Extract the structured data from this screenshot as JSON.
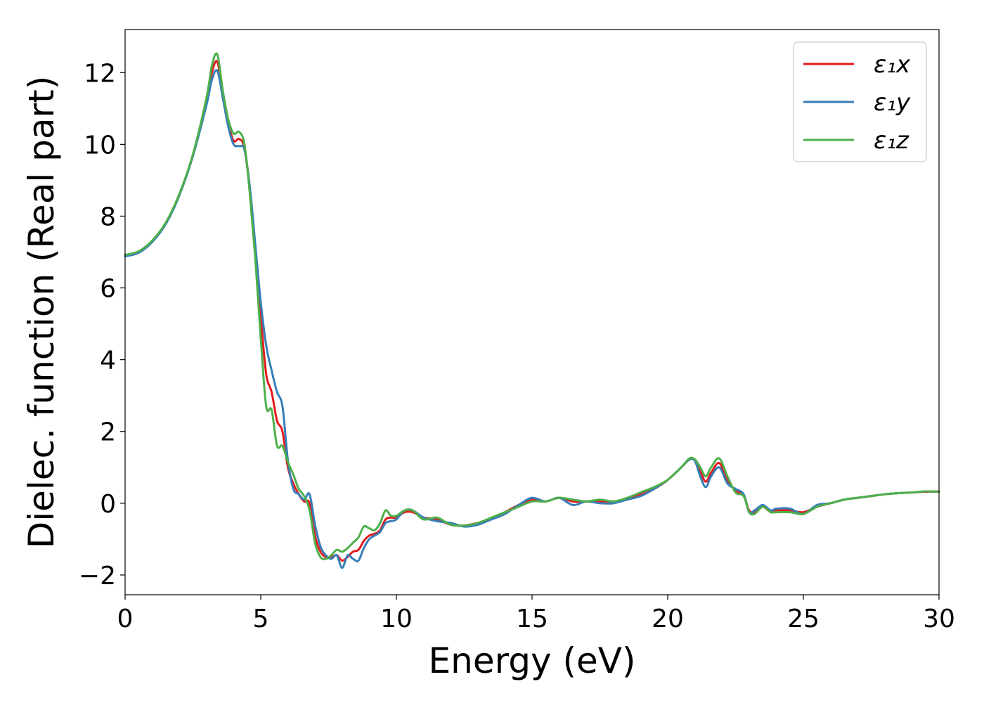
{
  "chart_data": {
    "type": "line",
    "title": "",
    "xlabel": "Energy (eV)",
    "ylabel": "Dielec. function (Real part)",
    "xlim": [
      0,
      30
    ],
    "ylim": [
      -2.55,
      13.2
    ],
    "xticks": [
      0,
      5,
      10,
      15,
      20,
      25,
      30
    ],
    "xtick_labels": [
      "0",
      "5",
      "10",
      "15",
      "20",
      "25",
      "30"
    ],
    "yticks": [
      -2,
      0,
      2,
      4,
      6,
      8,
      10,
      12
    ],
    "ytick_labels": [
      "−2",
      "0",
      "2",
      "4",
      "6",
      "8",
      "10",
      "12"
    ],
    "grid": false,
    "legend_position": "top-right",
    "series": [
      {
        "name": "ε₁x",
        "color": "#e41a1c",
        "x": [
          0,
          0.5,
          1,
          1.5,
          2,
          2.5,
          3,
          3.2,
          3.4,
          3.6,
          3.8,
          4.0,
          4.2,
          4.4,
          4.6,
          4.8,
          5.0,
          5.2,
          5.4,
          5.6,
          5.8,
          6.0,
          6.2,
          6.4,
          6.6,
          6.8,
          7.0,
          7.2,
          7.4,
          7.6,
          7.8,
          8.0,
          8.2,
          8.4,
          8.6,
          8.8,
          9.0,
          9.2,
          9.4,
          9.6,
          9.8,
          10.0,
          10.3,
          10.6,
          11.0,
          11.5,
          12.0,
          12.5,
          13.0,
          13.5,
          14.0,
          14.5,
          15.0,
          15.5,
          16.0,
          16.5,
          17.0,
          17.5,
          18.0,
          18.5,
          19.0,
          19.5,
          20.0,
          20.5,
          20.8,
          21.0,
          21.2,
          21.4,
          21.6,
          21.9,
          22.2,
          22.5,
          22.8,
          23.0,
          23.2,
          23.5,
          23.8,
          24.0,
          24.5,
          25.0,
          25.5,
          26.0,
          26.5,
          27.0,
          27.5,
          28.0,
          28.5,
          29.0,
          29.5,
          30.0
        ],
        "y": [
          6.9,
          7.0,
          7.3,
          7.8,
          8.6,
          9.7,
          11.2,
          12.0,
          12.3,
          11.4,
          10.6,
          10.1,
          10.15,
          9.9,
          8.7,
          7.0,
          5.2,
          3.6,
          3.1,
          2.3,
          2.0,
          1.0,
          0.55,
          0.25,
          0.05,
          0.0,
          -0.9,
          -1.35,
          -1.5,
          -1.5,
          -1.45,
          -1.6,
          -1.5,
          -1.35,
          -1.3,
          -1.05,
          -0.9,
          -0.85,
          -0.75,
          -0.45,
          -0.4,
          -0.4,
          -0.25,
          -0.25,
          -0.4,
          -0.45,
          -0.6,
          -0.62,
          -0.55,
          -0.45,
          -0.25,
          -0.05,
          0.1,
          0.05,
          0.15,
          0.05,
          0.05,
          0.05,
          0.05,
          0.1,
          0.25,
          0.4,
          0.65,
          1.0,
          1.22,
          1.2,
          0.9,
          0.6,
          0.85,
          1.12,
          0.65,
          0.35,
          0.2,
          -0.2,
          -0.25,
          -0.1,
          -0.25,
          -0.2,
          -0.2,
          -0.25,
          -0.1,
          0.0,
          0.1,
          0.15,
          0.2,
          0.25,
          0.28,
          0.3,
          0.32,
          0.33
        ]
      },
      {
        "name": "ε₁y",
        "color": "#377eb8",
        "x": [
          0,
          0.5,
          1,
          1.5,
          2,
          2.5,
          3,
          3.2,
          3.4,
          3.6,
          3.8,
          4.0,
          4.2,
          4.4,
          4.6,
          4.8,
          5.0,
          5.2,
          5.4,
          5.6,
          5.8,
          6.0,
          6.2,
          6.4,
          6.6,
          6.8,
          7.0,
          7.2,
          7.4,
          7.6,
          7.8,
          8.0,
          8.2,
          8.4,
          8.6,
          8.8,
          9.0,
          9.2,
          9.4,
          9.6,
          9.8,
          10.0,
          10.3,
          10.6,
          11.0,
          11.5,
          12.0,
          12.5,
          13.0,
          13.5,
          14.0,
          14.5,
          15.0,
          15.5,
          16.0,
          16.5,
          17.0,
          17.5,
          18.0,
          18.5,
          19.0,
          19.5,
          20.0,
          20.5,
          20.8,
          21.0,
          21.2,
          21.4,
          21.6,
          21.9,
          22.2,
          22.5,
          22.8,
          23.0,
          23.2,
          23.5,
          23.8,
          24.0,
          24.5,
          25.0,
          25.5,
          26.0,
          26.5,
          27.0,
          27.5,
          28.0,
          28.5,
          29.0,
          29.5,
          30.0
        ],
        "y": [
          6.88,
          6.98,
          7.28,
          7.78,
          8.58,
          9.68,
          11.1,
          11.8,
          12.05,
          11.3,
          10.5,
          10.0,
          9.95,
          9.85,
          8.8,
          7.2,
          5.6,
          4.4,
          3.7,
          3.1,
          2.7,
          1.2,
          0.4,
          0.25,
          0.1,
          0.25,
          -0.6,
          -1.2,
          -1.45,
          -1.55,
          -1.45,
          -1.8,
          -1.45,
          -1.55,
          -1.6,
          -1.25,
          -1.0,
          -0.9,
          -0.8,
          -0.55,
          -0.5,
          -0.45,
          -0.2,
          -0.2,
          -0.4,
          -0.5,
          -0.55,
          -0.65,
          -0.6,
          -0.45,
          -0.3,
          -0.05,
          0.15,
          0.05,
          0.15,
          -0.05,
          0.05,
          0.0,
          0.0,
          0.1,
          0.2,
          0.4,
          0.65,
          1.0,
          1.22,
          1.18,
          0.75,
          0.45,
          0.75,
          1.0,
          0.55,
          0.4,
          0.25,
          -0.25,
          -0.2,
          -0.05,
          -0.2,
          -0.15,
          -0.15,
          -0.3,
          -0.05,
          0.0,
          0.1,
          0.15,
          0.2,
          0.25,
          0.28,
          0.3,
          0.33,
          0.32
        ]
      },
      {
        "name": "ε₁z",
        "color": "#4daf4a",
        "x": [
          0,
          0.5,
          1,
          1.5,
          2,
          2.5,
          3,
          3.2,
          3.4,
          3.6,
          3.8,
          4.0,
          4.2,
          4.4,
          4.6,
          4.8,
          5.0,
          5.2,
          5.4,
          5.6,
          5.8,
          6.0,
          6.2,
          6.4,
          6.6,
          6.8,
          7.0,
          7.2,
          7.4,
          7.6,
          7.8,
          8.0,
          8.2,
          8.4,
          8.6,
          8.8,
          9.0,
          9.2,
          9.4,
          9.6,
          9.8,
          10.0,
          10.3,
          10.6,
          11.0,
          11.5,
          12.0,
          12.5,
          13.0,
          13.5,
          14.0,
          14.5,
          15.0,
          15.5,
          16.0,
          16.5,
          17.0,
          17.5,
          18.0,
          18.5,
          19.0,
          19.5,
          20.0,
          20.5,
          20.8,
          21.0,
          21.2,
          21.4,
          21.6,
          21.9,
          22.2,
          22.5,
          22.8,
          23.0,
          23.2,
          23.5,
          23.8,
          24.0,
          24.5,
          25.0,
          25.5,
          26.0,
          26.5,
          27.0,
          27.5,
          28.0,
          28.5,
          29.0,
          29.5,
          30.0
        ],
        "y": [
          6.92,
          7.02,
          7.32,
          7.82,
          8.62,
          9.72,
          11.3,
          12.2,
          12.5,
          11.5,
          10.7,
          10.3,
          10.35,
          10.0,
          8.6,
          6.8,
          4.6,
          2.7,
          2.6,
          1.6,
          1.6,
          1.15,
          0.8,
          0.4,
          0.2,
          -0.2,
          -1.1,
          -1.5,
          -1.55,
          -1.45,
          -1.3,
          -1.35,
          -1.25,
          -1.1,
          -0.95,
          -0.65,
          -0.7,
          -0.75,
          -0.55,
          -0.2,
          -0.35,
          -0.35,
          -0.2,
          -0.2,
          -0.45,
          -0.4,
          -0.6,
          -0.62,
          -0.55,
          -0.4,
          -0.25,
          -0.1,
          0.05,
          0.05,
          0.15,
          0.1,
          0.05,
          0.1,
          0.05,
          0.15,
          0.3,
          0.45,
          0.65,
          1.0,
          1.25,
          1.22,
          1.0,
          0.75,
          1.0,
          1.25,
          0.75,
          0.3,
          0.2,
          -0.25,
          -0.3,
          -0.1,
          -0.25,
          -0.25,
          -0.25,
          -0.3,
          -0.1,
          0.0,
          0.1,
          0.15,
          0.2,
          0.25,
          0.28,
          0.3,
          0.33,
          0.32
        ]
      }
    ]
  }
}
